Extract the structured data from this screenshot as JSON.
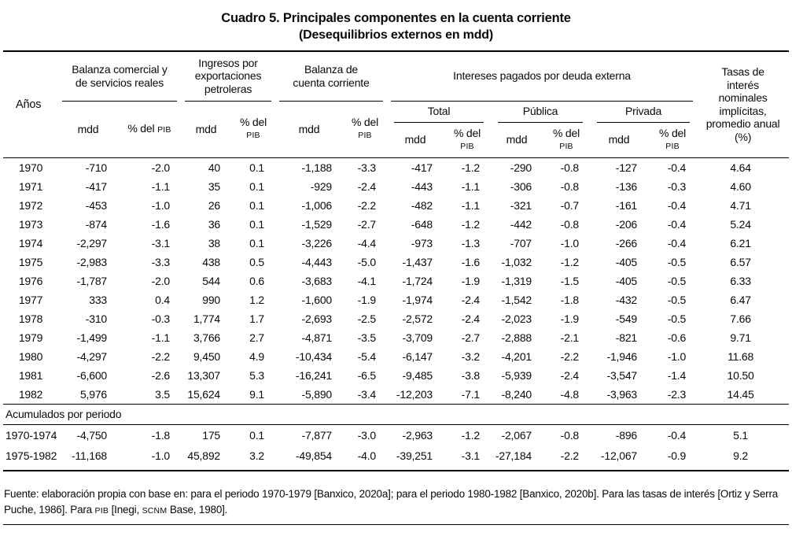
{
  "title": "Cuadro 5. Principales componentes en la cuenta corriente",
  "subtitle": "(Desequilibrios externos en mdd)",
  "table": {
    "header": {
      "anos": "Años",
      "groups": [
        {
          "label": "Balanza comercial y de servicios reales"
        },
        {
          "label": "Ingresos por exportaciones petroleras"
        },
        {
          "label": "Balanza de cuenta corriente"
        },
        {
          "label": "Intereses pagados por deuda externa"
        }
      ],
      "subgroups": [
        "Total",
        "Pública",
        "Privada"
      ],
      "unit_mdd": "mdd",
      "unit_pct": "% del",
      "unit_pib": "PIB",
      "tasas": "Tasas de interés nominales implícitas, promedio anual (%)"
    },
    "rows": [
      {
        "year": "1970",
        "values": [
          "-710",
          "-2.0",
          "40",
          "0.1",
          "-1,188",
          "-3.3",
          "-417",
          "-1.2",
          "-290",
          "-0.8",
          "-127",
          "-0.4",
          "4.64"
        ]
      },
      {
        "year": "1971",
        "values": [
          "-417",
          "-1.1",
          "35",
          "0.1",
          "-929",
          "-2.4",
          "-443",
          "-1.1",
          "-306",
          "-0.8",
          "-136",
          "-0.3",
          "4.60"
        ]
      },
      {
        "year": "1972",
        "values": [
          "-453",
          "-1.0",
          "26",
          "0.1",
          "-1,006",
          "-2.2",
          "-482",
          "-1.1",
          "-321",
          "-0.7",
          "-161",
          "-0.4",
          "4.71"
        ]
      },
      {
        "year": "1973",
        "values": [
          "-874",
          "-1.6",
          "36",
          "0.1",
          "-1,529",
          "-2.7",
          "-648",
          "-1.2",
          "-442",
          "-0.8",
          "-206",
          "-0.4",
          "5.24"
        ]
      },
      {
        "year": "1974",
        "values": [
          "-2,297",
          "-3.1",
          "38",
          "0.1",
          "-3,226",
          "-4.4",
          "-973",
          "-1.3",
          "-707",
          "-1.0",
          "-266",
          "-0.4",
          "6.21"
        ]
      },
      {
        "year": "1975",
        "values": [
          "-2,983",
          "-3.3",
          "438",
          "0.5",
          "-4,443",
          "-5.0",
          "-1,437",
          "-1.6",
          "-1,032",
          "-1.2",
          "-405",
          "-0.5",
          "6.57"
        ]
      },
      {
        "year": "1976",
        "values": [
          "-1,787",
          "-2.0",
          "544",
          "0.6",
          "-3,683",
          "-4.1",
          "-1,724",
          "-1.9",
          "-1,319",
          "-1.5",
          "-405",
          "-0.5",
          "6.33"
        ]
      },
      {
        "year": "1977",
        "values": [
          "333",
          "0.4",
          "990",
          "1.2",
          "-1,600",
          "-1.9",
          "-1,974",
          "-2.4",
          "-1,542",
          "-1.8",
          "-432",
          "-0.5",
          "6.47"
        ]
      },
      {
        "year": "1978",
        "values": [
          "-310",
          "-0.3",
          "1,774",
          "1.7",
          "-2,693",
          "-2.5",
          "-2,572",
          "-2.4",
          "-2,023",
          "-1.9",
          "-549",
          "-0.5",
          "7.66"
        ]
      },
      {
        "year": "1979",
        "values": [
          "-1,499",
          "-1.1",
          "3,766",
          "2.7",
          "-4,871",
          "-3.5",
          "-3,709",
          "-2.7",
          "-2,888",
          "-2.1",
          "-821",
          "-0.6",
          "9.71"
        ]
      },
      {
        "year": "1980",
        "values": [
          "-4,297",
          "-2.2",
          "9,450",
          "4.9",
          "-10,434",
          "-5.4",
          "-6,147",
          "-3.2",
          "-4,201",
          "-2.2",
          "-1,946",
          "-1.0",
          "11.68"
        ]
      },
      {
        "year": "1981",
        "values": [
          "-6,600",
          "-2.6",
          "13,307",
          "5.3",
          "-16,241",
          "-6.5",
          "-9,485",
          "-3.8",
          "-5,939",
          "-2.4",
          "-3,547",
          "-1.4",
          "10.50"
        ]
      },
      {
        "year": "1982",
        "values": [
          "5,976",
          "3.5",
          "15,624",
          "9.1",
          "-5,890",
          "-3.4",
          "-12,203",
          "-7.1",
          "-8,240",
          "-4.8",
          "-3,963",
          "-2.3",
          "14.45"
        ]
      }
    ],
    "section_label": "Acumulados por periodo",
    "accumulated_rows": [
      {
        "year": "1970-1974",
        "values": [
          "-4,750",
          "-1.8",
          "175",
          "0.1",
          "-7,877",
          "-3.0",
          "-2,963",
          "-1.2",
          "-2,067",
          "-0.8",
          "-896",
          "-0.4",
          "5.1"
        ]
      },
      {
        "year": "1975-1982",
        "values": [
          "-11,168",
          "-1.0",
          "45,892",
          "3.2",
          "-49,854",
          "-4.0",
          "-39,251",
          "-3.1",
          "-27,184",
          "-2.2",
          "-12,067",
          "-0.9",
          "9.2"
        ]
      }
    ]
  },
  "footnote_parts": [
    {
      "text": "Fuente: elaboración propia con base en: para el periodo 1970-1979 [Banxico, 2020a]; para el periodo 1980-1982 [Banxico, 2020b]. Para las tasas de interés [Ortiz y Serra Puche, 1986]. Para ",
      "small": false
    },
    {
      "text": "PIB",
      "small": true
    },
    {
      "text": " [Inegi, ",
      "small": false
    },
    {
      "text": "SCNM",
      "small": true
    },
    {
      "text": " Base, 1980].",
      "small": false
    }
  ]
}
